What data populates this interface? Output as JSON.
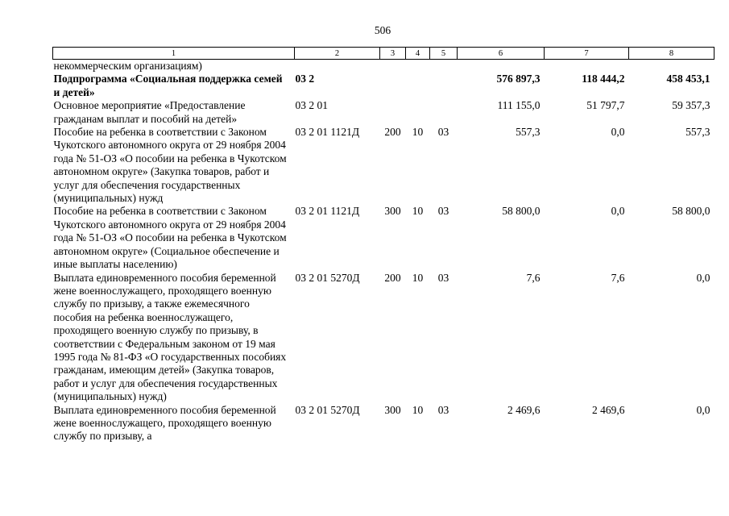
{
  "page": {
    "number": "506"
  },
  "table": {
    "column_headers": [
      "1",
      "2",
      "3",
      "4",
      "5",
      "6",
      "7",
      "8"
    ],
    "rows": [
      {
        "name": "некоммерческим организациям)",
        "code": "",
        "c3": "",
        "c4": "",
        "c5": "",
        "c6": "",
        "c7": "",
        "c8": ""
      },
      {
        "name": "Подпрограмма «Социальная поддержка семей и детей»",
        "code": "03 2",
        "c3": "",
        "c4": "",
        "c5": "",
        "c6": "576 897,3",
        "c7": "118 444,2",
        "c8": "458 453,1"
      },
      {
        "name": "Основное мероприятие «Предоставление гражданам выплат и пособий на детей»",
        "code": "03 2 01",
        "c3": "",
        "c4": "",
        "c5": "",
        "c6": "111 155,0",
        "c7": "51 797,7",
        "c8": "59 357,3"
      },
      {
        "name": "Пособие на ребенка в соответствии с Законом Чукотского автономного округа от 29 ноября 2004 года № 51-ОЗ «О пособии на ребенка в Чукотском автономном округе» (Закупка товаров, работ и услуг для обеспечения государственных (муниципальных) нужд",
        "code": "03 2 01 1121Д",
        "c3": "200",
        "c4": "10",
        "c5": "03",
        "c6": "557,3",
        "c7": "0,0",
        "c8": "557,3"
      },
      {
        "name": "Пособие на ребенка в соответствии с Законом Чукотского автономного округа от 29 ноября 2004 года № 51-ОЗ «О пособии на ребенка в Чукотском автономном округе» (Социальное обеспечение и иные выплаты населению)",
        "code": "03 2 01 1121Д",
        "c3": "300",
        "c4": "10",
        "c5": "03",
        "c6": "58 800,0",
        "c7": "0,0",
        "c8": "58 800,0"
      },
      {
        "name": "Выплата единовременного пособия беременной жене военнослужащего, проходящего военную службу по призыву, а также ежемесячного пособия на ребенка военнослужащего, проходящего военную службу по призыву, в соответствии с Федеральным законом от 19 мая 1995 года № 81-ФЗ «О государственных пособиях гражданам, имеющим детей» (Закупка товаров, работ и услуг для обеспечения государственных (муниципальных) нужд)",
        "code": "03 2 01 5270Д",
        "c3": "200",
        "c4": "10",
        "c5": "03",
        "c6": "7,6",
        "c7": "7,6",
        "c8": "0,0"
      },
      {
        "name": "Выплата единовременного пособия беременной жене военнослужащего, проходящего военную службу по призыву, а",
        "code": "03 2 01 5270Д",
        "c3": "300",
        "c4": "10",
        "c5": "03",
        "c6": "2 469,6",
        "c7": "2 469,6",
        "c8": "0,0"
      }
    ]
  }
}
